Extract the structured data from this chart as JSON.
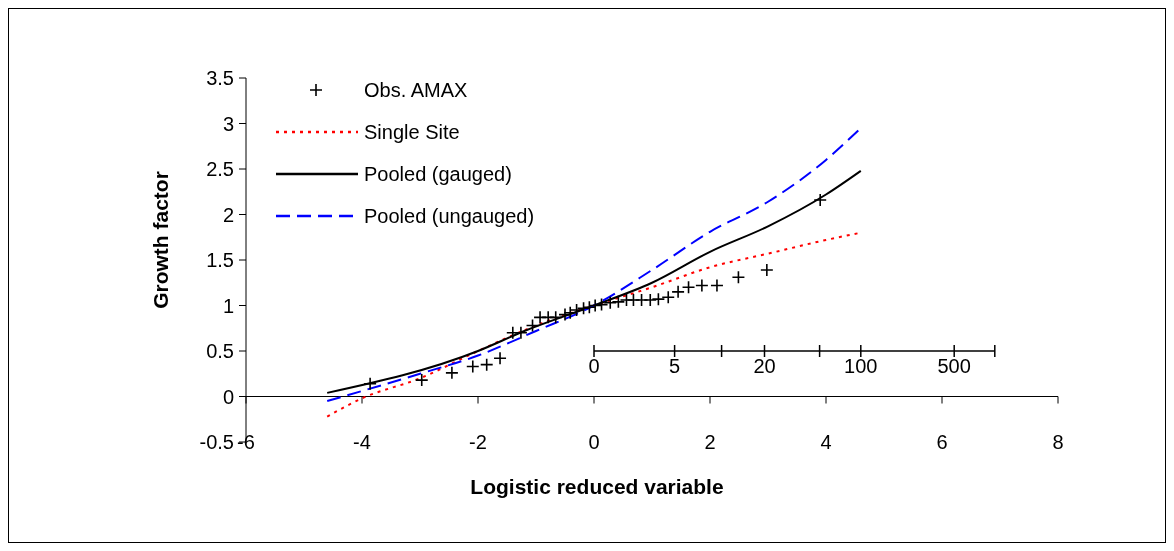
{
  "chart_data": {
    "type": "line",
    "xlabel": "Logistic reduced variable",
    "ylabel": "Growth factor",
    "xlim": [
      -6,
      8
    ],
    "xticks": [
      -6,
      -4,
      -2,
      0,
      2,
      4,
      6,
      8
    ],
    "ylim": [
      -0.5,
      3.5
    ],
    "yticks": [
      -0.5,
      0,
      0.5,
      1,
      1.5,
      2,
      2.5,
      3,
      3.5
    ],
    "annotations": [
      "0",
      "5",
      "20",
      "100",
      "500"
    ],
    "grid": false,
    "legend": "top left",
    "series": [
      {
        "name": "Obs. AMAX",
        "type": "scatter",
        "marker": "cross",
        "color": "#000000",
        "x": [
          -3.86,
          -2.97,
          -2.45,
          -2.09,
          -1.85,
          -1.62,
          -1.4,
          -1.26,
          -1.06,
          -0.93,
          -0.79,
          -0.66,
          -0.5,
          -0.41,
          -0.3,
          -0.18,
          -0.08,
          0.02,
          0.13,
          0.28,
          0.42,
          0.56,
          0.68,
          0.82,
          0.97,
          1.11,
          1.28,
          1.45,
          1.63,
          1.86,
          2.12,
          2.49,
          2.98,
          3.9
        ],
        "values": [
          0.14,
          0.18,
          0.26,
          0.33,
          0.35,
          0.42,
          0.7,
          0.7,
          0.78,
          0.87,
          0.87,
          0.87,
          0.9,
          0.92,
          0.95,
          0.97,
          0.98,
          1.0,
          1.01,
          1.03,
          1.04,
          1.06,
          1.06,
          1.06,
          1.06,
          1.07,
          1.09,
          1.15,
          1.2,
          1.22,
          1.22,
          1.31,
          1.39,
          2.16
        ]
      },
      {
        "name": "Single Site",
        "line_style": "dotted",
        "color": "#ff0000",
        "x": [
          -4.6,
          -4,
          -3,
          -2,
          -1,
          0,
          1,
          2,
          3,
          4,
          4.6
        ],
        "values": [
          -0.22,
          -0.02,
          0.2,
          0.5,
          0.78,
          1.0,
          1.2,
          1.42,
          1.57,
          1.72,
          1.8
        ]
      },
      {
        "name": "Pooled (gauged)",
        "line_style": "solid",
        "color": "#000000",
        "x": [
          -4.6,
          -2,
          -1.2,
          0,
          1,
          2,
          3,
          4,
          4.6
        ],
        "values": [
          0.04,
          0.5,
          0.72,
          1.0,
          1.25,
          1.59,
          1.87,
          2.22,
          2.48
        ]
      },
      {
        "name": "Pooled (ungauged)",
        "line_style": "dashed",
        "color": "#0000ff",
        "x": [
          -4.6,
          -3,
          -2,
          -1,
          0,
          1,
          2,
          3,
          4,
          4.6
        ],
        "values": [
          -0.05,
          0.25,
          0.45,
          0.72,
          1.0,
          1.39,
          1.81,
          2.14,
          2.6,
          2.95
        ]
      }
    ]
  }
}
